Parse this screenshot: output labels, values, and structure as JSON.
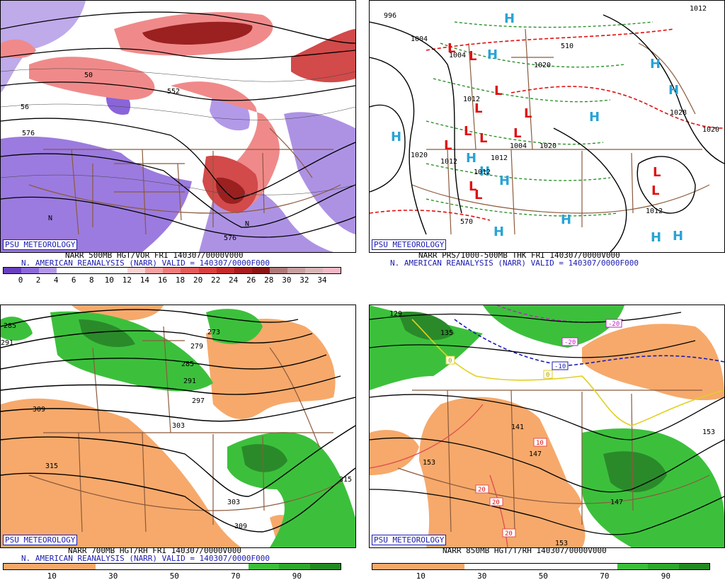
{
  "badge": "PSU METEOROLOGY",
  "colors": {
    "badge_text": "#1b1bb0",
    "vort_purple": "#8a64d9",
    "vort_light_red": "#f08a8a",
    "vort_red": "#d24a4a",
    "vort_dark_red": "#9b2020",
    "rh_orange": "#f6a96b",
    "rh_green": "#3cc03c",
    "rh_dark_green": "#2a8a2a",
    "map_borders": "#8b5a3c",
    "high_symbol": "#29a3d6",
    "low_symbol": "#e01010"
  },
  "panels": [
    {
      "id": "vort500",
      "title": "NARR 500MB HGT/VOR FRI 140307/0000V000",
      "subtitle": "N. AMERICAN REANALYSIS (NARR) VALID = 140307/0000F000",
      "colorbar": {
        "colors": [
          "#6a3fbf",
          "#8c6ad8",
          "#b39ae8",
          "#ffffff",
          "#ffffff",
          "#ffffff",
          "#ffffff",
          "#ffd2d2",
          "#f5a3a3",
          "#ee7d7d",
          "#e45c5c",
          "#d84040",
          "#c52b2b",
          "#a81d1d",
          "#8a1616",
          "#b07a7a",
          "#c9a0a0",
          "#d9b7b7",
          "#f4b9c7"
        ],
        "ticks": [
          "0",
          "2",
          "4",
          "6",
          "8",
          "10",
          "12",
          "14",
          "16",
          "18",
          "20",
          "22",
          "24",
          "26",
          "28",
          "30",
          "32",
          "34"
        ]
      },
      "contour_labels": [
        "552",
        "576",
        "576",
        "50",
        "56",
        "N",
        "N"
      ]
    },
    {
      "id": "pmsl",
      "title": "NARR PRS/1000-500MB THK FRI 140307/0000V000",
      "subtitle": "N. AMERICAN REANALYSIS (NARR) VALID = 140307/0000F000",
      "contour_labels": [
        "996",
        "1004",
        "1004",
        "1020",
        "1012",
        "1012",
        "1012",
        "1012",
        "1004",
        "1020",
        "1028",
        "1020",
        "1012",
        "1020",
        "510",
        "570",
        "1012"
      ],
      "highs": 13,
      "lows": 13
    },
    {
      "id": "rh700",
      "title": "NARR 700MB HGT/RH FRI 140307/0000V000",
      "subtitle": "N. AMERICAN REANALYSIS (NARR) VALID = 140307/0000F000",
      "colorbar": {
        "colors": [
          "#f6a96b",
          "#f6a96b",
          "#f6a96b",
          "#ffffff",
          "#ffffff",
          "#ffffff",
          "#ffffff",
          "#ffffff",
          "#3cc03c",
          "#2fa82f",
          "#238a23"
        ],
        "ticks": [
          "10",
          "30",
          "50",
          "70",
          "90"
        ]
      },
      "contour_labels": [
        "285",
        "273",
        "279",
        "285",
        "291",
        "297",
        "303",
        "309",
        "315",
        "303",
        "309",
        "315",
        "291"
      ]
    },
    {
      "id": "rh850",
      "title": "NARR 850MB HGT/T/RH 140307/0000V000",
      "subtitle": "",
      "colorbar": {
        "colors": [
          "#f6a96b",
          "#f6a96b",
          "#f6a96b",
          "#ffffff",
          "#ffffff",
          "#ffffff",
          "#ffffff",
          "#ffffff",
          "#3cc03c",
          "#2fa82f",
          "#238a23"
        ],
        "ticks": [
          "10",
          "30",
          "50",
          "70",
          "90"
        ]
      },
      "contour_labels": [
        "129",
        "135",
        "141",
        "147",
        "153",
        "147",
        "153",
        "153"
      ],
      "temp_labels": [
        "-20",
        "-20",
        "-10",
        "0",
        "0",
        "10",
        "20",
        "20",
        "20"
      ]
    }
  ]
}
